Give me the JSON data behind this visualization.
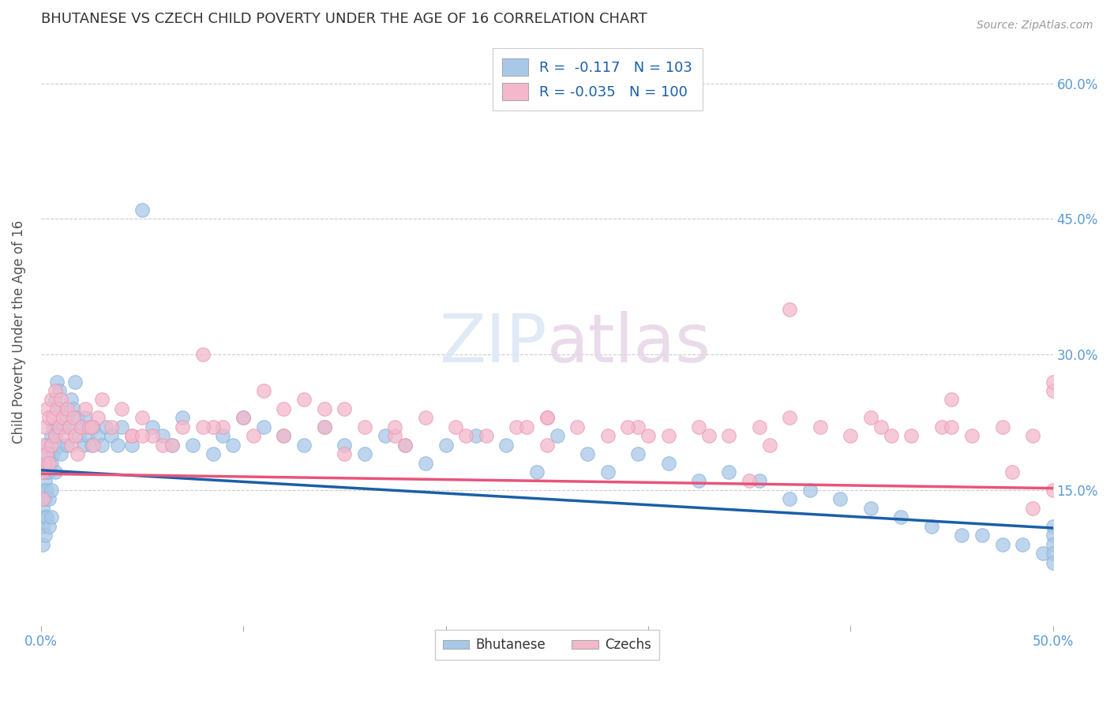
{
  "title": "BHUTANESE VS CZECH CHILD POVERTY UNDER THE AGE OF 16 CORRELATION CHART",
  "source": "Source: ZipAtlas.com",
  "ylabel": "Child Poverty Under the Age of 16",
  "xlim": [
    0.0,
    0.5
  ],
  "ylim": [
    0.0,
    0.65
  ],
  "xticks": [
    0.0,
    0.1,
    0.2,
    0.3,
    0.4,
    0.5
  ],
  "xticklabels_show": [
    "0.0%",
    "",
    "",
    "",
    "",
    "50.0%"
  ],
  "yticks": [
    0.0,
    0.15,
    0.3,
    0.45,
    0.6
  ],
  "yticklabels": [
    "",
    "15.0%",
    "30.0%",
    "45.0%",
    "60.0%"
  ],
  "blue_color": "#a8c8e8",
  "pink_color": "#f4b8cb",
  "blue_edge_color": "#8ab4d8",
  "pink_edge_color": "#e898b0",
  "blue_line_color": "#1a5fa8",
  "pink_line_color": "#e8547a",
  "grid_color": "#cccccc",
  "title_color": "#333333",
  "right_tick_color": "#5b9bd5",
  "legend_blue_label": "R =  -0.117   N = 103",
  "legend_pink_label": "R = -0.035   N = 100",
  "legend_blue_face": "#a8c8e8",
  "legend_pink_face": "#f4b8cb",
  "blue_trend_y0": 0.172,
  "blue_trend_y1": 0.108,
  "pink_trend_y0": 0.168,
  "pink_trend_y1": 0.152,
  "bhutanese_x": [
    0.001,
    0.001,
    0.001,
    0.001,
    0.001,
    0.002,
    0.002,
    0.002,
    0.002,
    0.002,
    0.003,
    0.003,
    0.003,
    0.003,
    0.004,
    0.004,
    0.004,
    0.004,
    0.005,
    0.005,
    0.005,
    0.005,
    0.006,
    0.006,
    0.007,
    0.007,
    0.007,
    0.008,
    0.008,
    0.009,
    0.009,
    0.01,
    0.01,
    0.011,
    0.012,
    0.013,
    0.013,
    0.014,
    0.015,
    0.016,
    0.017,
    0.018,
    0.019,
    0.02,
    0.021,
    0.022,
    0.023,
    0.025,
    0.026,
    0.028,
    0.03,
    0.032,
    0.035,
    0.038,
    0.04,
    0.045,
    0.05,
    0.055,
    0.06,
    0.065,
    0.07,
    0.075,
    0.085,
    0.09,
    0.095,
    0.1,
    0.11,
    0.12,
    0.13,
    0.14,
    0.15,
    0.16,
    0.17,
    0.18,
    0.19,
    0.2,
    0.215,
    0.23,
    0.245,
    0.255,
    0.27,
    0.28,
    0.295,
    0.31,
    0.325,
    0.34,
    0.355,
    0.37,
    0.38,
    0.395,
    0.41,
    0.425,
    0.44,
    0.455,
    0.465,
    0.475,
    0.485,
    0.495,
    0.5,
    0.5,
    0.5,
    0.5,
    0.5
  ],
  "bhutanese_y": [
    0.17,
    0.15,
    0.13,
    0.11,
    0.09,
    0.18,
    0.16,
    0.14,
    0.12,
    0.1,
    0.2,
    0.17,
    0.15,
    0.12,
    0.19,
    0.17,
    0.14,
    0.11,
    0.21,
    0.18,
    0.15,
    0.12,
    0.22,
    0.19,
    0.25,
    0.21,
    0.17,
    0.27,
    0.22,
    0.26,
    0.2,
    0.24,
    0.19,
    0.22,
    0.24,
    0.23,
    0.2,
    0.22,
    0.25,
    0.24,
    0.27,
    0.23,
    0.21,
    0.22,
    0.2,
    0.23,
    0.21,
    0.2,
    0.22,
    0.21,
    0.2,
    0.22,
    0.21,
    0.2,
    0.22,
    0.2,
    0.46,
    0.22,
    0.21,
    0.2,
    0.23,
    0.2,
    0.19,
    0.21,
    0.2,
    0.23,
    0.22,
    0.21,
    0.2,
    0.22,
    0.2,
    0.19,
    0.21,
    0.2,
    0.18,
    0.2,
    0.21,
    0.2,
    0.17,
    0.21,
    0.19,
    0.17,
    0.19,
    0.18,
    0.16,
    0.17,
    0.16,
    0.14,
    0.15,
    0.14,
    0.13,
    0.12,
    0.11,
    0.1,
    0.1,
    0.09,
    0.09,
    0.08,
    0.11,
    0.1,
    0.09,
    0.08,
    0.07
  ],
  "czech_x": [
    0.001,
    0.001,
    0.001,
    0.002,
    0.002,
    0.003,
    0.003,
    0.004,
    0.004,
    0.005,
    0.005,
    0.006,
    0.007,
    0.007,
    0.008,
    0.009,
    0.01,
    0.011,
    0.012,
    0.013,
    0.014,
    0.015,
    0.016,
    0.017,
    0.018,
    0.02,
    0.022,
    0.024,
    0.026,
    0.028,
    0.03,
    0.035,
    0.04,
    0.045,
    0.05,
    0.055,
    0.06,
    0.07,
    0.08,
    0.09,
    0.1,
    0.11,
    0.12,
    0.13,
    0.14,
    0.15,
    0.16,
    0.175,
    0.19,
    0.205,
    0.22,
    0.235,
    0.25,
    0.265,
    0.28,
    0.295,
    0.31,
    0.325,
    0.34,
    0.355,
    0.37,
    0.385,
    0.4,
    0.415,
    0.43,
    0.445,
    0.46,
    0.475,
    0.49,
    0.5,
    0.025,
    0.045,
    0.065,
    0.085,
    0.105,
    0.14,
    0.175,
    0.21,
    0.25,
    0.29,
    0.33,
    0.37,
    0.41,
    0.45,
    0.49,
    0.08,
    0.12,
    0.18,
    0.24,
    0.3,
    0.36,
    0.42,
    0.48,
    0.05,
    0.15,
    0.25,
    0.35,
    0.45,
    0.5,
    0.5
  ],
  "czech_y": [
    0.2,
    0.17,
    0.14,
    0.22,
    0.18,
    0.24,
    0.19,
    0.23,
    0.18,
    0.25,
    0.2,
    0.23,
    0.26,
    0.21,
    0.24,
    0.22,
    0.25,
    0.23,
    0.21,
    0.24,
    0.22,
    0.2,
    0.23,
    0.21,
    0.19,
    0.22,
    0.24,
    0.22,
    0.2,
    0.23,
    0.25,
    0.22,
    0.24,
    0.21,
    0.23,
    0.21,
    0.2,
    0.22,
    0.3,
    0.22,
    0.23,
    0.26,
    0.24,
    0.25,
    0.22,
    0.24,
    0.22,
    0.21,
    0.23,
    0.22,
    0.21,
    0.22,
    0.23,
    0.22,
    0.21,
    0.22,
    0.21,
    0.22,
    0.21,
    0.22,
    0.23,
    0.22,
    0.21,
    0.22,
    0.21,
    0.22,
    0.21,
    0.22,
    0.21,
    0.26,
    0.22,
    0.21,
    0.2,
    0.22,
    0.21,
    0.24,
    0.22,
    0.21,
    0.23,
    0.22,
    0.21,
    0.35,
    0.23,
    0.22,
    0.13,
    0.22,
    0.21,
    0.2,
    0.22,
    0.21,
    0.2,
    0.21,
    0.17,
    0.21,
    0.19,
    0.2,
    0.16,
    0.25,
    0.15,
    0.27
  ]
}
